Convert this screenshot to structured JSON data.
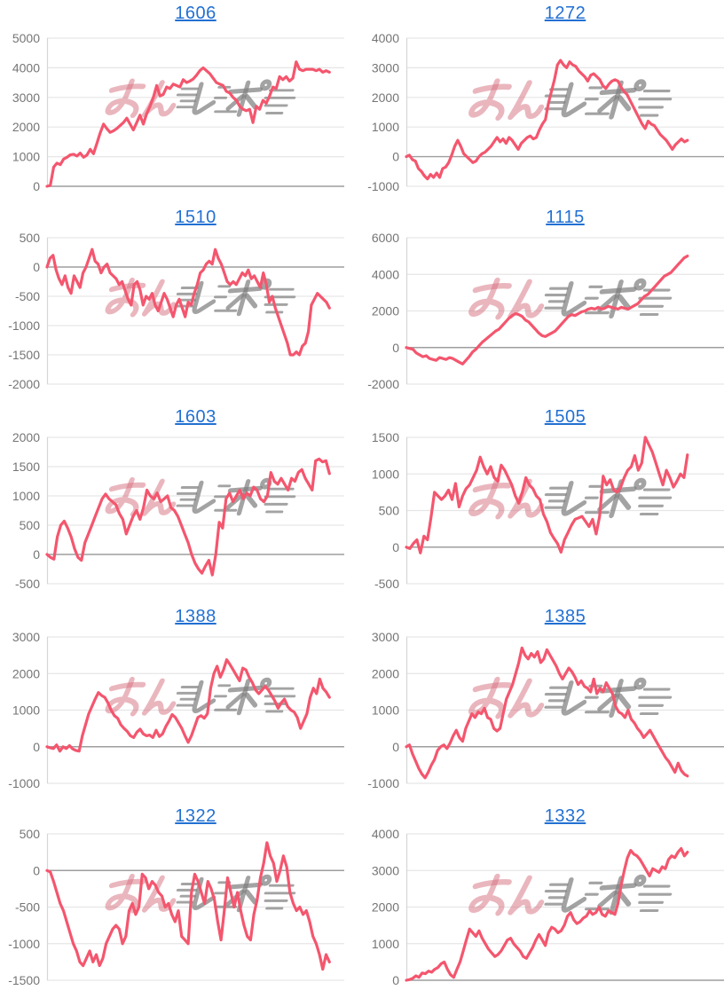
{
  "page": {
    "background": "#ffffff",
    "description": "grid of 10 machine payout line charts"
  },
  "style": {
    "line_color": "#f4566e",
    "grid_color": "#e6e6e6",
    "zero_line_color": "#9e9e9e",
    "axis_line_color": "#d6d6d6",
    "tick_label_color": "#757575",
    "title_link_color": "#2270d2"
  },
  "watermark": {
    "text": "みんレポ",
    "left_text": "みん",
    "right_text": "レポ",
    "left_color": "rgba(214,110,125,0.50)",
    "right_color": "rgba(128,128,128,0.72)"
  },
  "chart_data": [
    {
      "type": "line",
      "title": "1606",
      "ylim": [
        0,
        5000
      ],
      "yticks": [
        5000,
        4000,
        3000,
        2000,
        1000,
        0
      ],
      "xlabel": "",
      "ylabel": "",
      "legend": "none",
      "grid": true,
      "values": [
        0,
        30,
        650,
        780,
        730,
        920,
        980,
        1060,
        1080,
        1020,
        1120,
        980,
        1050,
        1250,
        1100,
        1450,
        1800,
        2100,
        1950,
        1820,
        1870,
        1950,
        2050,
        2150,
        2300,
        2100,
        1900,
        2150,
        2400,
        2100,
        2450,
        2700,
        3000,
        3400,
        3050,
        3100,
        3350,
        3300,
        3450,
        3400,
        3350,
        3600,
        3500,
        3550,
        3620,
        3750,
        3900,
        4000,
        3900,
        3800,
        3650,
        3500,
        3450,
        3400,
        3200,
        3150,
        3000,
        2900,
        2700,
        2600,
        2550,
        2600,
        2150,
        2700,
        2600,
        2900,
        2800,
        3050,
        3350,
        3300,
        3700,
        3600,
        3700,
        3550,
        3650,
        4200,
        3950,
        3900,
        3950,
        3950,
        3950,
        3900,
        3950,
        3850,
        3900,
        3850
      ]
    },
    {
      "type": "line",
      "title": "1272",
      "ylim": [
        -1000,
        4000
      ],
      "yticks": [
        4000,
        3000,
        2000,
        1000,
        0,
        -1000
      ],
      "xlabel": "",
      "ylabel": "",
      "legend": "none",
      "grid": true,
      "values": [
        0,
        50,
        -100,
        -150,
        -400,
        -500,
        -650,
        -750,
        -600,
        -700,
        -550,
        -700,
        -400,
        -350,
        -200,
        50,
        350,
        550,
        350,
        100,
        0,
        -100,
        -200,
        -150,
        0,
        100,
        150,
        250,
        350,
        500,
        650,
        500,
        600,
        450,
        650,
        550,
        400,
        250,
        450,
        550,
        650,
        700,
        600,
        650,
        900,
        1100,
        1250,
        1800,
        2200,
        2600,
        3100,
        3250,
        3100,
        3000,
        3200,
        3100,
        3050,
        2900,
        2800,
        2700,
        2550,
        2750,
        2800,
        2700,
        2600,
        2400,
        2300,
        2450,
        2550,
        2600,
        2550,
        2350,
        2200,
        2100,
        1900,
        1700,
        1500,
        1300,
        1100,
        950,
        1200,
        1100,
        1050,
        900,
        750,
        650,
        550,
        400,
        250,
        400,
        500,
        600,
        500,
        550
      ]
    },
    {
      "type": "line",
      "title": "1510",
      "ylim": [
        -2000,
        500
      ],
      "yticks": [
        500,
        0,
        -500,
        -1000,
        -1500,
        -2000
      ],
      "xlabel": "",
      "ylabel": "",
      "legend": "none",
      "grid": true,
      "values": [
        0,
        150,
        200,
        -50,
        -200,
        -300,
        -150,
        -350,
        -450,
        -150,
        -250,
        -350,
        -100,
        0,
        150,
        300,
        100,
        50,
        -100,
        0,
        50,
        -100,
        -150,
        -200,
        -300,
        -250,
        -400,
        -550,
        -650,
        -300,
        -250,
        -400,
        -650,
        -500,
        -550,
        -450,
        -650,
        -750,
        -600,
        -450,
        -550,
        -700,
        -850,
        -650,
        -550,
        -700,
        -850,
        -600,
        -650,
        -450,
        -300,
        -100,
        -50,
        50,
        100,
        50,
        300,
        150,
        50,
        -100,
        -250,
        -300,
        -250,
        -300,
        -200,
        -100,
        -150,
        -50,
        -200,
        -150,
        -250,
        -350,
        -100,
        -300,
        -600,
        -500,
        -700,
        -850,
        -1000,
        -1150,
        -1300,
        -1500,
        -1500,
        -1450,
        -1500,
        -1350,
        -1300,
        -1100,
        -650,
        -550,
        -450,
        -500,
        -550,
        -600,
        -700
      ]
    },
    {
      "type": "line",
      "title": "1115",
      "ylim": [
        -2000,
        6000
      ],
      "yticks": [
        6000,
        4000,
        2000,
        0,
        -2000
      ],
      "xlabel": "",
      "ylabel": "",
      "legend": "none",
      "grid": true,
      "values": [
        0,
        -50,
        -100,
        -300,
        -400,
        -500,
        -450,
        -600,
        -650,
        -700,
        -550,
        -600,
        -650,
        -550,
        -600,
        -700,
        -800,
        -900,
        -700,
        -500,
        -250,
        -100,
        100,
        300,
        450,
        600,
        750,
        900,
        1000,
        1200,
        1400,
        1600,
        1750,
        1850,
        1800,
        1700,
        1500,
        1400,
        1200,
        1000,
        800,
        650,
        600,
        700,
        800,
        900,
        1100,
        1300,
        1500,
        1700,
        1800,
        1750,
        1850,
        1950,
        2000,
        2100,
        2150,
        2100,
        2200,
        2100,
        2150,
        2250,
        2200,
        2150,
        2100,
        2200,
        2150,
        2100,
        2200,
        2300,
        2400,
        2600,
        2800,
        2900,
        3100,
        3300,
        3500,
        3700,
        3900,
        4000,
        4100,
        4300,
        4500,
        4700,
        4900,
        5000
      ]
    },
    {
      "type": "line",
      "title": "1603",
      "ylim": [
        -500,
        2000
      ],
      "yticks": [
        2000,
        1500,
        1000,
        500,
        0,
        -500
      ],
      "xlabel": "",
      "ylabel": "",
      "legend": "none",
      "grid": true,
      "values": [
        0,
        -50,
        -80,
        300,
        500,
        570,
        450,
        300,
        100,
        -50,
        -100,
        200,
        350,
        500,
        650,
        800,
        950,
        1030,
        950,
        900,
        850,
        700,
        600,
        350,
        500,
        650,
        750,
        600,
        800,
        1100,
        1000,
        950,
        1050,
        900,
        950,
        1000,
        800,
        750,
        650,
        500,
        350,
        200,
        0,
        -150,
        -250,
        -320,
        -200,
        -100,
        -350,
        0,
        550,
        450,
        950,
        1050,
        900,
        1000,
        1100,
        950,
        1050,
        1000,
        1150,
        1100,
        950,
        900,
        1000,
        1400,
        1250,
        1200,
        1300,
        1200,
        1100,
        1300,
        1250,
        1400,
        1450,
        1300,
        1200,
        1100,
        1600,
        1630,
        1580,
        1600,
        1380
      ]
    },
    {
      "type": "line",
      "title": "1505",
      "ylim": [
        -500,
        1500
      ],
      "yticks": [
        1500,
        1000,
        500,
        0,
        -500
      ],
      "xlabel": "",
      "ylabel": "",
      "legend": "none",
      "grid": true,
      "values": [
        0,
        -20,
        50,
        100,
        -80,
        150,
        100,
        400,
        750,
        700,
        650,
        700,
        780,
        650,
        870,
        550,
        700,
        800,
        850,
        950,
        1050,
        1230,
        1100,
        1000,
        1100,
        950,
        900,
        1120,
        1050,
        950,
        850,
        700,
        600,
        750,
        950,
        850,
        800,
        700,
        650,
        450,
        350,
        200,
        120,
        50,
        -70,
        100,
        200,
        300,
        380,
        400,
        420,
        350,
        280,
        380,
        180,
        420,
        970,
        850,
        920,
        780,
        750,
        820,
        950,
        1050,
        1100,
        1250,
        1050,
        1150,
        1500,
        1400,
        1300,
        1150,
        1000,
        850,
        1050,
        950,
        820,
        900,
        1000,
        950,
        1260
      ]
    },
    {
      "type": "line",
      "title": "1388",
      "ylim": [
        -1000,
        3000
      ],
      "yticks": [
        3000,
        2000,
        1000,
        0,
        -1000
      ],
      "xlabel": "",
      "ylabel": "",
      "legend": "none",
      "grid": true,
      "values": [
        0,
        -30,
        -50,
        50,
        -120,
        0,
        -50,
        30,
        -60,
        -100,
        -120,
        300,
        600,
        900,
        1100,
        1300,
        1480,
        1400,
        1350,
        1200,
        1000,
        850,
        780,
        600,
        500,
        420,
        300,
        250,
        400,
        480,
        350,
        300,
        320,
        250,
        450,
        280,
        350,
        550,
        700,
        880,
        800,
        650,
        500,
        300,
        120,
        300,
        550,
        800,
        850,
        780,
        900,
        1600,
        2000,
        2200,
        1900,
        2100,
        2380,
        2250,
        2100,
        1950,
        1800,
        2150,
        2100,
        1900,
        1750,
        1550,
        1450,
        1550,
        1650,
        1550,
        1400,
        1250,
        1050,
        1200,
        1300,
        1100,
        1000,
        950,
        800,
        500,
        700,
        900,
        1350,
        1600,
        1450,
        1850,
        1600,
        1500,
        1350
      ]
    },
    {
      "type": "line",
      "title": "1385",
      "ylim": [
        -1000,
        3000
      ],
      "yticks": [
        3000,
        2000,
        1000,
        0,
        -1000
      ],
      "xlabel": "",
      "ylabel": "",
      "legend": "none",
      "grid": true,
      "values": [
        0,
        50,
        -200,
        -400,
        -600,
        -750,
        -850,
        -700,
        -500,
        -350,
        -100,
        0,
        50,
        -50,
        100,
        300,
        450,
        250,
        150,
        500,
        700,
        900,
        800,
        950,
        900,
        1050,
        800,
        750,
        500,
        430,
        500,
        900,
        1300,
        1500,
        1700,
        2000,
        2300,
        2700,
        2500,
        2400,
        2550,
        2450,
        2600,
        2300,
        2400,
        2650,
        2500,
        2350,
        2200,
        2000,
        1850,
        2000,
        2150,
        2050,
        1900,
        1700,
        1800,
        1650,
        1600,
        1500,
        1850,
        1450,
        1600,
        1500,
        1750,
        1600,
        1450,
        1100,
        950,
        900,
        800,
        1000,
        750,
        650,
        500,
        400,
        250,
        350,
        450,
        300,
        150,
        0,
        -150,
        -300,
        -400,
        -550,
        -700,
        -450,
        -650,
        -750,
        -800
      ]
    },
    {
      "type": "line",
      "title": "1322",
      "ylim": [
        -1500,
        500
      ],
      "yticks": [
        500,
        0,
        -500,
        -1000,
        -1500
      ],
      "xlabel": "",
      "ylabel": "",
      "legend": "none",
      "grid": true,
      "values": [
        0,
        -20,
        -150,
        -300,
        -450,
        -550,
        -700,
        -850,
        -1000,
        -1100,
        -1250,
        -1300,
        -1200,
        -1100,
        -1250,
        -1150,
        -1300,
        -1200,
        -1000,
        -900,
        -800,
        -750,
        -800,
        -1000,
        -900,
        -550,
        -450,
        -600,
        -500,
        -50,
        -100,
        -250,
        -150,
        -200,
        -300,
        -350,
        -500,
        -450,
        -600,
        -700,
        -550,
        -900,
        -950,
        -1000,
        -300,
        -50,
        -150,
        -300,
        -450,
        -150,
        -250,
        -400,
        -700,
        -950,
        -550,
        -100,
        -300,
        -500,
        -300,
        -550,
        -750,
        -900,
        -950,
        -600,
        -400,
        -100,
        100,
        380,
        200,
        100,
        -150,
        0,
        200,
        50,
        -300,
        -450,
        -550,
        -500,
        -600,
        -550,
        -700,
        -900,
        -1000,
        -1150,
        -1350,
        -1150,
        -1250
      ]
    },
    {
      "type": "line",
      "title": "1332",
      "ylim": [
        0,
        4000
      ],
      "yticks": [
        4000,
        3000,
        2000,
        1000,
        0
      ],
      "xlabel": "",
      "ylabel": "",
      "legend": "none",
      "grid": true,
      "values": [
        0,
        20,
        50,
        120,
        80,
        200,
        180,
        250,
        220,
        300,
        350,
        450,
        500,
        300,
        150,
        80,
        300,
        500,
        800,
        1100,
        1400,
        1300,
        1200,
        1350,
        1150,
        1000,
        850,
        750,
        650,
        700,
        800,
        950,
        1100,
        1150,
        1000,
        900,
        800,
        650,
        600,
        750,
        900,
        1100,
        1250,
        1100,
        950,
        1300,
        1450,
        1400,
        1300,
        1350,
        1500,
        1750,
        1850,
        1650,
        1550,
        1600,
        1700,
        1750,
        1900,
        1800,
        1850,
        2000,
        1800,
        1750,
        1900,
        1850,
        1800,
        2100,
        2600,
        3000,
        3350,
        3550,
        3450,
        3400,
        3300,
        3150,
        3000,
        2850,
        3050,
        3000,
        2950,
        3100,
        3050,
        3300,
        3400,
        3350,
        3500,
        3600,
        3400,
        3500
      ]
    }
  ]
}
